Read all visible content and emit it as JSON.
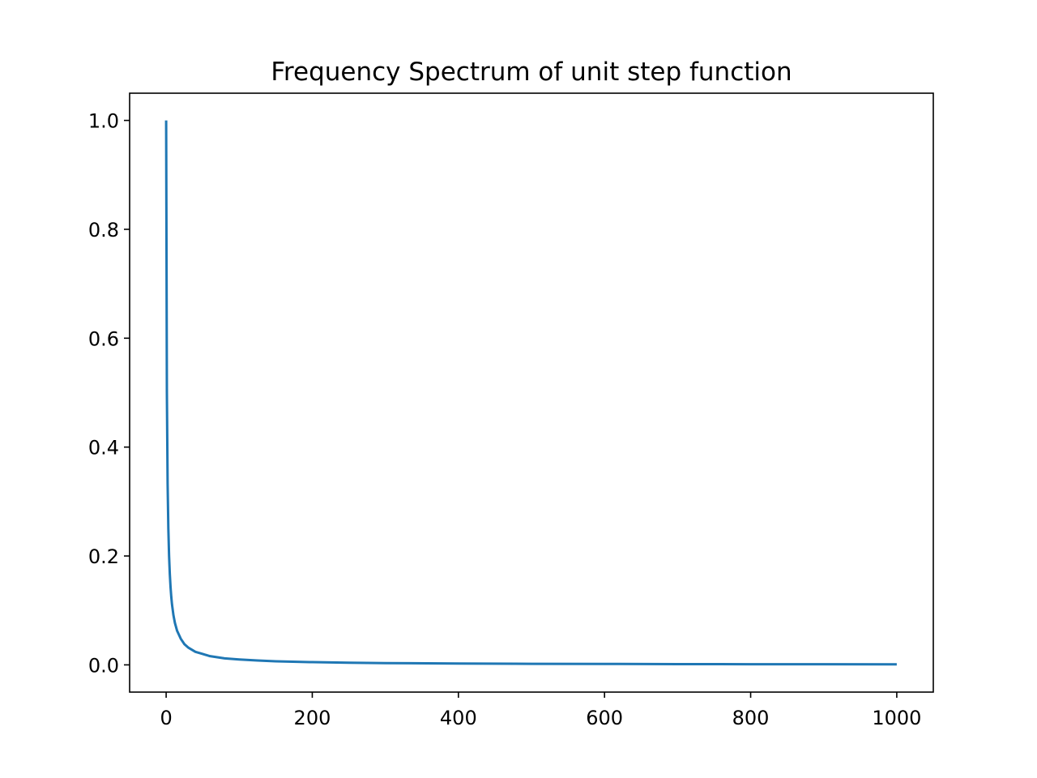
{
  "chart_data": {
    "type": "line",
    "title": "Frequency Spectrum of unit step function",
    "xlabel": "",
    "ylabel": "",
    "xlim": [
      -50,
      1050
    ],
    "ylim": [
      -0.05,
      1.05
    ],
    "xticks": [
      0,
      200,
      400,
      600,
      800,
      1000
    ],
    "xtick_labels": [
      "0",
      "200",
      "400",
      "600",
      "800",
      "1000"
    ],
    "yticks": [
      0.0,
      0.2,
      0.4,
      0.6,
      0.8,
      1.0
    ],
    "ytick_labels": [
      "0.0",
      "0.2",
      "0.4",
      "0.6",
      "0.8",
      "1.0"
    ],
    "grid": false,
    "series": [
      {
        "color": "#1f77b4",
        "x": [
          0,
          1,
          2,
          3,
          4,
          5,
          6,
          7,
          8,
          10,
          12,
          15,
          20,
          25,
          30,
          40,
          50,
          60,
          80,
          100,
          125,
          150,
          200,
          250,
          300,
          400,
          500,
          600,
          700,
          800,
          900,
          1000
        ],
        "y": [
          1.0,
          0.5,
          0.333,
          0.25,
          0.2,
          0.167,
          0.143,
          0.125,
          0.111,
          0.091,
          0.077,
          0.0625,
          0.048,
          0.038,
          0.032,
          0.024,
          0.02,
          0.016,
          0.012,
          0.0099,
          0.008,
          0.0066,
          0.005,
          0.004,
          0.0033,
          0.0025,
          0.002,
          0.0017,
          0.0014,
          0.0012,
          0.0011,
          0.001
        ]
      }
    ]
  }
}
